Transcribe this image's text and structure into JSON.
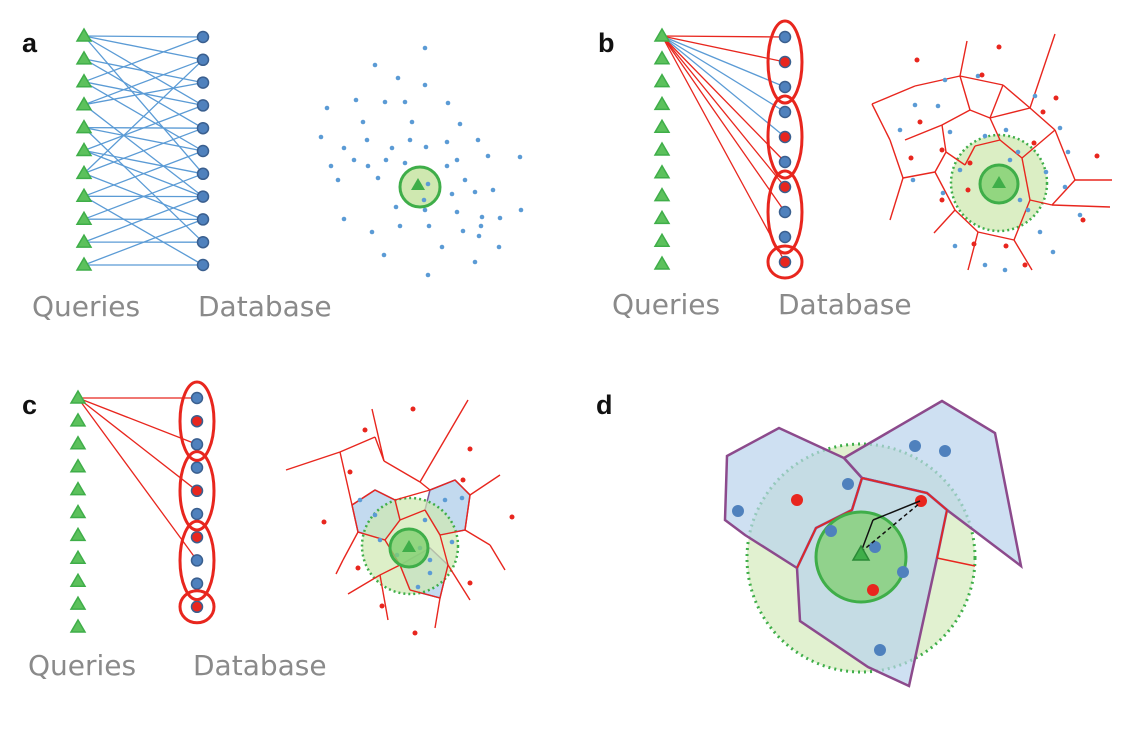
{
  "panels": {
    "a": {
      "label": "a",
      "queries": "Queries",
      "database": "Database"
    },
    "b": {
      "label": "b",
      "queries": "Queries",
      "database": "Database"
    },
    "c": {
      "label": "c",
      "queries": "Queries",
      "database": "Database"
    },
    "d": {
      "label": "d"
    }
  },
  "colors": {
    "query": "#3fae49",
    "query_fill": "#5cc15c",
    "db_blue": "#4f81bd",
    "db_red": "#e8261e",
    "link_blue": "#5b9bd5",
    "link_red": "#e8261e",
    "cell_fill_blue": "#b9d3ec",
    "disk_fill": "#cfe8b0",
    "caption": "#8a8a8a"
  }
}
